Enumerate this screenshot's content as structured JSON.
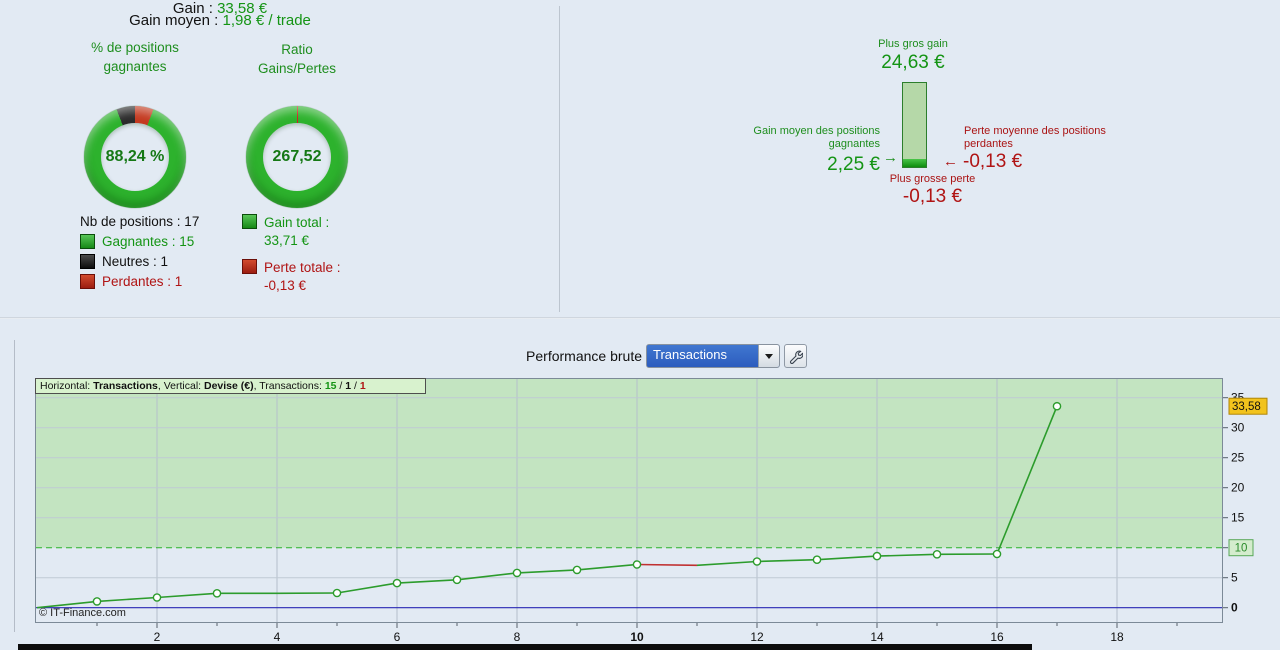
{
  "stats_left": {
    "title_label": "Gain :",
    "title_value": "33,58 €",
    "winners_donut": {
      "header": "% de positions gagnantes",
      "center_value": "88,24 %",
      "segments": [
        {
          "label": "Perdantes",
          "value": 1,
          "color": "#c43a20"
        },
        {
          "label": "Gagnantes",
          "value": 15,
          "color": "#2db22d"
        },
        {
          "label": "Neutres",
          "value": 1,
          "color": "#2b2b2b"
        }
      ]
    },
    "ratio_donut": {
      "header": "Ratio Gains/Pertes",
      "center_value": "267,52",
      "segments": [
        {
          "label": "Perte",
          "value": 0.13,
          "color": "#cc2222"
        },
        {
          "label": "Gain",
          "value": 33.71,
          "color": "#2db22d"
        }
      ]
    },
    "positions_total": "Nb de positions : 17",
    "positions": [
      {
        "label": "Gagnantes : 15"
      },
      {
        "label": "Neutres : 1"
      },
      {
        "label": "Perdantes : 1"
      }
    ],
    "totals": [
      {
        "label": "Gain total :",
        "value": "33,71 €"
      },
      {
        "label": "Perte totale :",
        "value": "-0,13 €"
      }
    ]
  },
  "stats_right": {
    "title_label": "Gain moyen :",
    "title_value": "1,98 € / trade",
    "max_gain_label": "Plus gros gain",
    "max_gain_value": "24,63 €",
    "avg_win_label": "Gain moyen des positions gagnantes",
    "avg_win_arrow": "→",
    "avg_win_value": "2,25 €",
    "avg_loss_label": "Perte moyenne des positions perdantes",
    "avg_loss_arrow": "←",
    "avg_loss_value": "-0,13 €",
    "max_loss_label": "Plus grosse perte",
    "max_loss_value": "-0,13 €",
    "bar": {
      "max_gain": 24.63,
      "avg_win": 2.25
    }
  },
  "toolbar": {
    "chart_title": "Performance brute",
    "dropdown_value": "Transactions"
  },
  "chart_data": {
    "type": "line",
    "title": "Performance brute",
    "info_bar": {
      "horizontal_label": "Horizontal: ",
      "horizontal_value": "Transactions",
      "vertical_label": ", Vertical: ",
      "vertical_value": "Devise (€)",
      "transactions_label": ", Transactions: ",
      "wins": "15",
      "sep1": " / ",
      "neutral": "1",
      "sep2": " / ",
      "losses": "1"
    },
    "xlabel": "Transactions",
    "ylabel": "Devise (€)",
    "start": {
      "x": 0,
      "y": 0
    },
    "x": [
      1,
      2,
      3,
      4,
      5,
      6,
      7,
      8,
      9,
      10,
      11,
      12,
      13,
      14,
      15,
      16,
      17
    ],
    "values": [
      1.05,
      1.7,
      2.4,
      2.4,
      2.45,
      4.1,
      4.65,
      5.8,
      6.3,
      7.2,
      7.07,
      7.7,
      8.0,
      8.6,
      8.9,
      8.95,
      33.58
    ],
    "no_marker_x": [
      4,
      11
    ],
    "loss_segments": [
      [
        10,
        11
      ]
    ],
    "x_ticks": [
      2,
      4,
      6,
      8,
      10,
      12,
      14,
      16,
      18
    ],
    "x_bold_ticks": [
      10
    ],
    "x_range": [
      0,
      19.75
    ],
    "y_ticks": [
      0,
      5,
      10,
      15,
      20,
      25,
      30,
      35
    ],
    "y_bold_ticks": [
      0
    ],
    "y_range": [
      -2.55,
      38.3
    ],
    "threshold": 10,
    "threshold_box_label": "10",
    "current_value": 33.58,
    "current_value_label": "33,58",
    "line_color": "#2c9c2c",
    "loss_color": "#c03030",
    "zero_line_color": "#2828b4",
    "green_zone_color": "#c3e4c1",
    "grid": true,
    "copyright": "© IT-Finance.com"
  }
}
